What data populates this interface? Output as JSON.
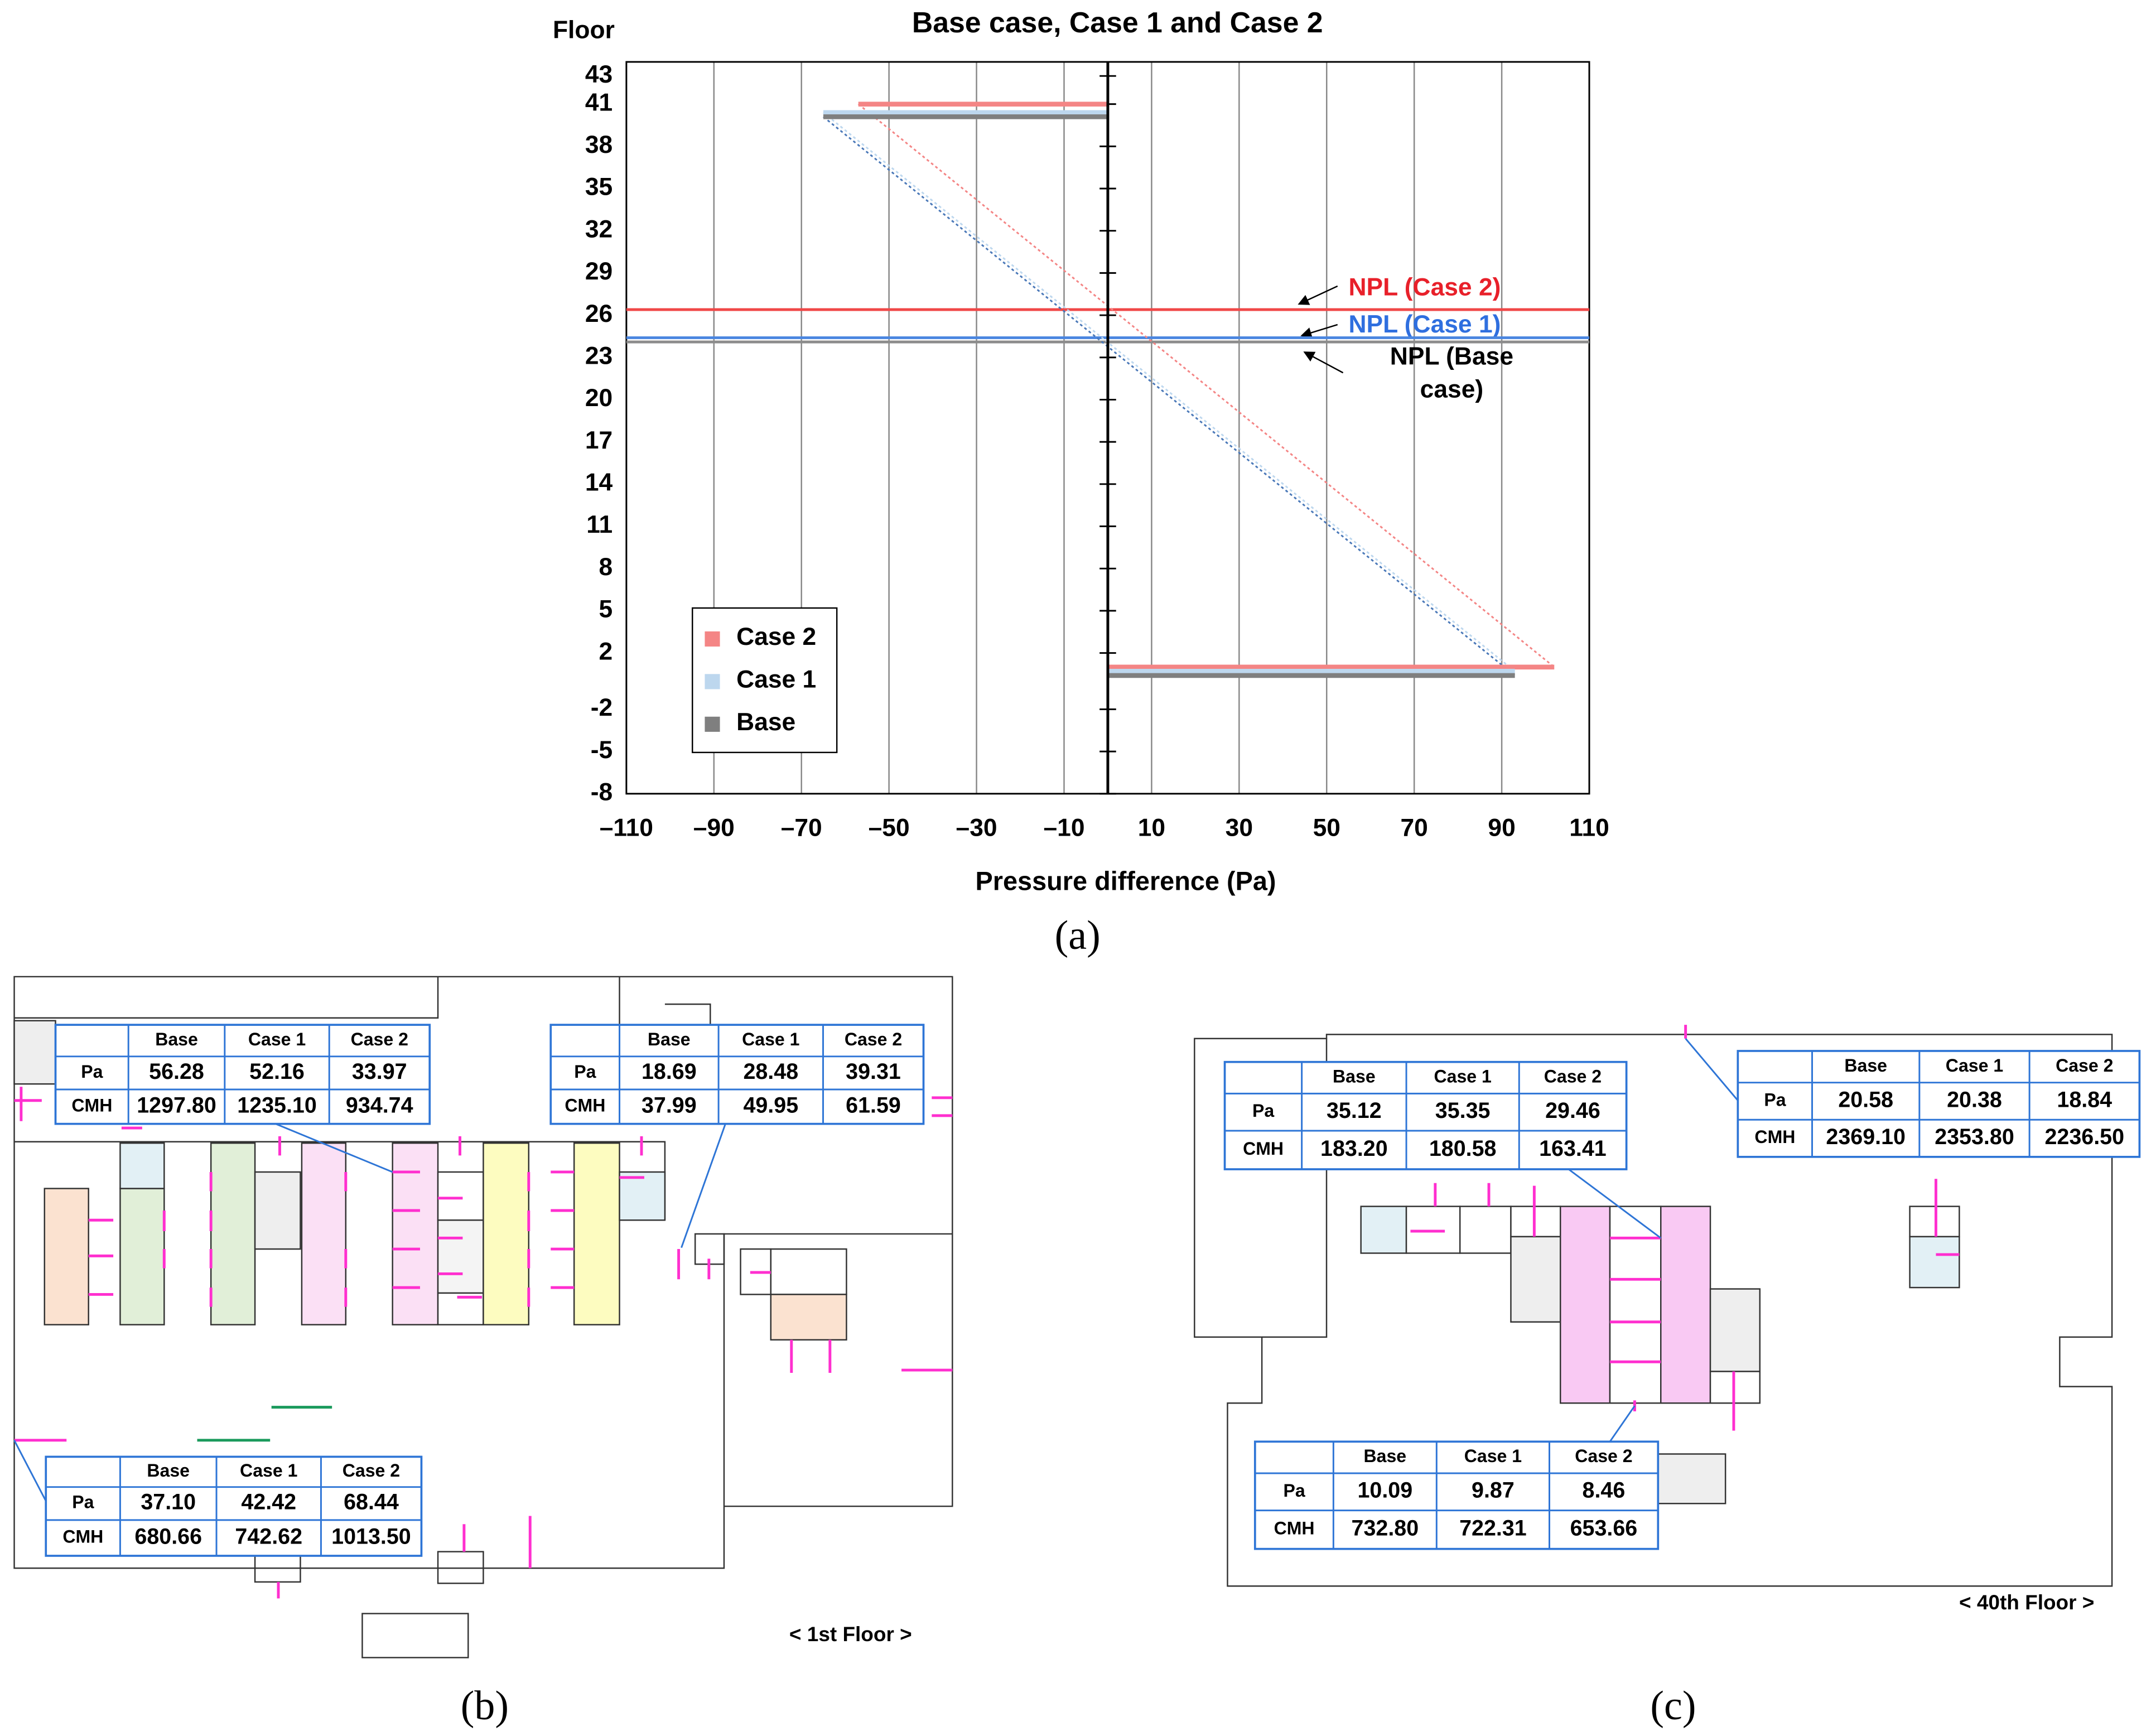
{
  "chart_data": {
    "type": "line",
    "title": "Base case, Case 1 and Case 2",
    "xlabel": "Pressure difference (Pa)",
    "ylabel": "Floor",
    "xlim": [
      -110,
      110
    ],
    "ylim": [
      -8,
      44
    ],
    "xticks": [
      {
        "value": -110,
        "label": "–110"
      },
      {
        "value": -90,
        "label": "–90"
      },
      {
        "value": -70,
        "label": "–70"
      },
      {
        "value": -50,
        "label": "–50"
      },
      {
        "value": -30,
        "label": "–30"
      },
      {
        "value": -10,
        "label": "–10"
      },
      10,
      30,
      50,
      70,
      90,
      110
    ],
    "yticks": [
      43,
      41,
      38,
      35,
      32,
      29,
      26,
      23,
      20,
      17,
      14,
      11,
      8,
      5,
      2,
      -2,
      -5,
      -8
    ],
    "grid": "x",
    "legend": "lower left",
    "series": [
      {
        "name": "Case 2",
        "color": "#f48585",
        "x": [
          -57,
          0,
          null,
          0,
          102
        ],
        "values": [
          41,
          41,
          null,
          1.0,
          1.0
        ],
        "trend_x": [
          -57,
          102
        ],
        "trend_values": [
          41,
          1.0
        ],
        "npl": 26.4,
        "npl_color": "#f04848"
      },
      {
        "name": "Case 1",
        "color": "#bdd7ee",
        "x": [
          -65,
          0,
          null,
          0,
          93
        ],
        "values": [
          40.4,
          40.4,
          null,
          0.7,
          0.7
        ],
        "trend_x": [
          -65,
          93
        ],
        "trend_values": [
          40.4,
          0.7
        ],
        "npl": 24.4,
        "npl_color": "#4a86e0"
      },
      {
        "name": "Base",
        "color": "#7f7f7f",
        "x": [
          -65,
          0,
          null,
          0,
          93
        ],
        "values": [
          40.1,
          40.1,
          null,
          0.4,
          0.4
        ],
        "trend_x": [
          -65,
          93
        ],
        "trend_values": [
          40.1,
          0.4
        ],
        "npl": 24.1,
        "npl_color": "#8c8c8c"
      }
    ],
    "annotations": [
      {
        "text": "NPL (Case 2)",
        "color": "#e8202a"
      },
      {
        "text": "NPL (Case 1)",
        "color": "#2f6fdf"
      },
      {
        "text": "NPL (Base case)",
        "color": "#000000"
      }
    ]
  },
  "panels": [
    "(a)",
    "(b)",
    "(c)"
  ],
  "floor_plans": [
    {
      "caption": "< 1st Floor >",
      "tables": [
        {
          "columns": [
            "Base",
            "Case 1",
            "Case 2"
          ],
          "rows": [
            {
              "label": "Pa",
              "values": [
                "56.28",
                "52.16",
                "33.97"
              ]
            },
            {
              "label": "CMH",
              "values": [
                "1297.80",
                "1235.10",
                "934.74"
              ]
            }
          ]
        },
        {
          "columns": [
            "Base",
            "Case 1",
            "Case 2"
          ],
          "rows": [
            {
              "label": "Pa",
              "values": [
                "18.69",
                "28.48",
                "39.31"
              ]
            },
            {
              "label": "CMH",
              "values": [
                "37.99",
                "49.95",
                "61.59"
              ]
            }
          ]
        },
        {
          "columns": [
            "Base",
            "Case 1",
            "Case 2"
          ],
          "rows": [
            {
              "label": "Pa",
              "values": [
                "37.10",
                "42.42",
                "68.44"
              ]
            },
            {
              "label": "CMH",
              "values": [
                "680.66",
                "742.62",
                "1013.50"
              ]
            }
          ]
        }
      ]
    },
    {
      "caption": "< 40th Floor >",
      "tables": [
        {
          "columns": [
            "Base",
            "Case 1",
            "Case 2"
          ],
          "rows": [
            {
              "label": "Pa",
              "values": [
                "35.12",
                "35.35",
                "29.46"
              ]
            },
            {
              "label": "CMH",
              "values": [
                "183.20",
                "180.58",
                "163.41"
              ]
            }
          ]
        },
        {
          "columns": [
            "Base",
            "Case 1",
            "Case 2"
          ],
          "rows": [
            {
              "label": "Pa",
              "values": [
                "20.58",
                "20.38",
                "18.84"
              ]
            },
            {
              "label": "CMH",
              "values": [
                "2369.10",
                "2353.80",
                "2236.50"
              ]
            }
          ]
        },
        {
          "columns": [
            "Base",
            "Case 1",
            "Case 2"
          ],
          "rows": [
            {
              "label": "Pa",
              "values": [
                "10.09",
                "9.87",
                "8.46"
              ]
            },
            {
              "label": "CMH",
              "values": [
                "732.80",
                "722.31",
                "653.66"
              ]
            }
          ]
        }
      ]
    }
  ]
}
